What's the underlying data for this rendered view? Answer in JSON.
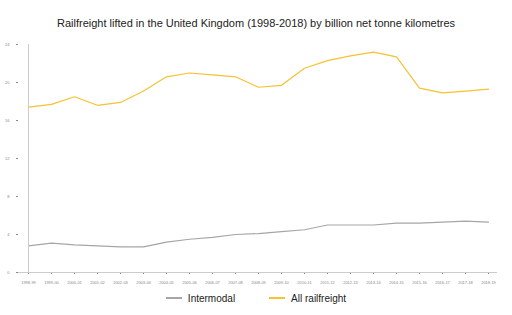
{
  "chart_data": {
    "type": "line",
    "title": "Railfreight lifted in the United Kingdom (1998-2018) by billion net tonne kilometres",
    "categories": [
      "1998-99",
      "1999-00",
      "2000-01",
      "2001-02",
      "2002-03",
      "2003-04",
      "2004-05",
      "2005-06",
      "2006-07",
      "2007-08",
      "2008-09",
      "2009-10",
      "2010-11",
      "2011-12",
      "2012-13",
      "2013-14",
      "2014-15",
      "2015-16",
      "2016-17",
      "2017-18",
      "2018-19"
    ],
    "series": [
      {
        "name": "Intermodal",
        "color": "#a6a6a6",
        "values": [
          2.8,
          3.1,
          2.9,
          2.8,
          2.7,
          2.7,
          3.2,
          3.5,
          3.7,
          4.0,
          4.1,
          4.3,
          4.5,
          5.0,
          5.0,
          5.0,
          5.2,
          5.2,
          5.3,
          5.4,
          5.3
        ]
      },
      {
        "name": "All railfreight",
        "color": "#f5c232",
        "values": [
          17.4,
          17.7,
          18.5,
          17.6,
          17.9,
          19.1,
          20.6,
          21.0,
          20.8,
          20.6,
          19.5,
          19.7,
          21.5,
          22.3,
          22.8,
          23.2,
          22.7,
          19.4,
          18.9,
          19.1,
          19.3
        ]
      }
    ],
    "ylim": [
      0,
      24
    ],
    "yticks": [
      0,
      4,
      8,
      12,
      16,
      20,
      24
    ],
    "grid": false,
    "legend": "bottom"
  }
}
